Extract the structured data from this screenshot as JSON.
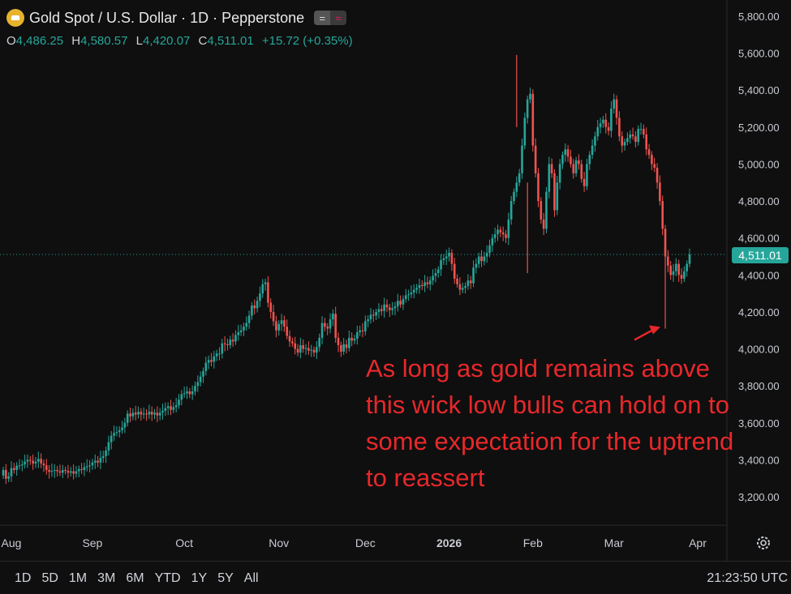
{
  "header": {
    "title": "Gold Spot / U.S. Dollar · 1D · Pepperstone",
    "pill_left": "=",
    "pill_right": "≈"
  },
  "ohlc": {
    "o_label": "O",
    "o": "4,486.25",
    "h_label": "H",
    "h": "4,580.57",
    "l_label": "L",
    "l": "4,420.07",
    "c_label": "C",
    "c": "4,511.01",
    "change": "+15.72 (+0.35%)"
  },
  "annotation": "As long as gold remains above this wick low bulls can hold on to some expectation for the uptrend to reassert",
  "last_price_label": "4,511.01",
  "ranges": [
    "1D",
    "5D",
    "1M",
    "3M",
    "6M",
    "YTD",
    "1Y",
    "5Y",
    "All"
  ],
  "clock": "21:23:50 UTC",
  "colors": {
    "up": "#26a69a",
    "down": "#ef5350",
    "annotation": "#e8282b",
    "background": "#0f0f0f"
  },
  "chart_data": {
    "type": "candlestick",
    "x_tick_labels": [
      "Aug",
      "Sep",
      "Oct",
      "Nov",
      "Dec",
      "2026",
      "Feb",
      "Mar",
      "Apr"
    ],
    "y_tick_labels": [
      "3,200.00",
      "3,400.00",
      "3,600.00",
      "3,800.00",
      "4,000.00",
      "4,200.00",
      "4,400.00",
      "4,600.00",
      "4,800.00",
      "5,000.00",
      "5,200.00",
      "5,400.00",
      "5,600.00",
      "5,800.00"
    ],
    "ylim": [
      3100,
      5880
    ],
    "last_price": 4511.01,
    "wick_low_marker": 4110,
    "grid": false,
    "series": [
      {
        "values": [
          3345,
          3298,
          3310,
          3355,
          3345,
          3368,
          3370,
          3375,
          3390,
          3400,
          3395,
          3380,
          3390,
          3405,
          3380,
          3370,
          3345,
          3335,
          3340,
          3345,
          3338,
          3330,
          3345,
          3340,
          3330,
          3338,
          3325,
          3338,
          3350,
          3345,
          3360,
          3365,
          3370,
          3385,
          3395,
          3385,
          3410,
          3420,
          3450,
          3495,
          3530,
          3545,
          3550,
          3560,
          3575,
          3600,
          3650,
          3635,
          3655,
          3645,
          3660,
          3645,
          3650,
          3645,
          3660,
          3645,
          3655,
          3640,
          3655,
          3665,
          3680,
          3690,
          3670,
          3685,
          3695,
          3725,
          3755,
          3760,
          3770,
          3755,
          3770,
          3800,
          3820,
          3850,
          3880,
          3925,
          3940,
          3930,
          3960,
          3975,
          3975,
          4030,
          4025,
          4020,
          4050,
          4040,
          4075,
          4090,
          4100,
          4120,
          4140,
          4180,
          4235,
          4220,
          4260,
          4300,
          4350,
          4360,
          4250,
          4200,
          4150,
          4100,
          4135,
          4155,
          4120,
          4070,
          4040,
          4030,
          4000,
          3980,
          4020,
          4000,
          4005,
          3990,
          3995,
          3980,
          4010,
          4060,
          4140,
          4120,
          4110,
          4160,
          4190,
          4060,
          4020,
          3985,
          4025,
          4005,
          4060,
          4045,
          4055,
          4090,
          4100,
          4095,
          4150,
          4160,
          4185,
          4180,
          4200,
          4215,
          4205,
          4240,
          4225,
          4210,
          4220,
          4230,
          4260,
          4240,
          4270,
          4290,
          4295,
          4305,
          4320,
          4330,
          4345,
          4340,
          4360,
          4350,
          4370,
          4395,
          4410,
          4430,
          4480,
          4490,
          4500,
          4520,
          4460,
          4380,
          4350,
          4320,
          4330,
          4340,
          4370,
          4355,
          4440,
          4460,
          4500,
          4475,
          4500,
          4520,
          4560,
          4600,
          4620,
          4645,
          4630,
          4620,
          4600,
          4700,
          4800,
          4850,
          4900,
          4950,
          5100,
          5250,
          5350,
          5380,
          5100,
          4950,
          4800,
          4700,
          4650,
          4850,
          5000,
          4950,
          4750,
          4900,
          5000,
          5050,
          5080,
          5040,
          5000,
          4950,
          5020,
          5000,
          4920,
          4880,
          5000,
          5050,
          5100,
          5150,
          5200,
          5220,
          5240,
          5200,
          5180,
          5300,
          5350,
          5250,
          5150,
          5100,
          5120,
          5140,
          5160,
          5150,
          5120,
          5190,
          5190,
          5160,
          5080,
          5050,
          5000,
          4980,
          4900,
          4800,
          4650,
          4500,
          4450,
          4400,
          4420,
          4460,
          4400,
          4380,
          4420,
          4460,
          4511
        ]
      }
    ]
  }
}
